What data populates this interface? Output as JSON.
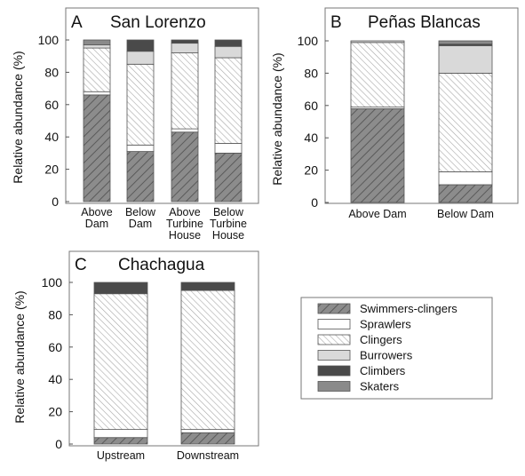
{
  "colors": {
    "swimmers_clingers": "#8c8c8c",
    "sprawlers": "#ffffff",
    "clingers": "#ffffff",
    "burrowers": "#d9d9d9",
    "climbers": "#4a4a4a",
    "skaters": "#8a8a8a",
    "stroke": "#555555"
  },
  "legend": {
    "items": [
      {
        "key": "swimmers_clingers",
        "label": "Swimmers-clingers"
      },
      {
        "key": "sprawlers",
        "label": "Sprawlers"
      },
      {
        "key": "clingers",
        "label": "Clingers"
      },
      {
        "key": "burrowers",
        "label": "Burrowers"
      },
      {
        "key": "climbers",
        "label": "Climbers"
      },
      {
        "key": "skaters",
        "label": "Skaters"
      }
    ]
  },
  "chart_data": [
    {
      "type": "bar",
      "stacked": true,
      "panel_letter": "A",
      "title": "San Lorenzo",
      "ylabel": "Relative abundance (%)",
      "ylim": [
        0,
        100
      ],
      "yticks": [
        0,
        20,
        40,
        60,
        80,
        100
      ],
      "categories": [
        "Above\nDam",
        "Below\nDam",
        "Above\nTurbine\nHouse",
        "Below\nTurbine\nHouse"
      ],
      "series": [
        {
          "name": "Swimmers-clingers",
          "key": "swimmers_clingers",
          "values": [
            66,
            31,
            43,
            30
          ]
        },
        {
          "name": "Sprawlers",
          "key": "sprawlers",
          "values": [
            2,
            4,
            2,
            6
          ]
        },
        {
          "name": "Clingers",
          "key": "clingers",
          "values": [
            27,
            50,
            47,
            53
          ]
        },
        {
          "name": "Burrowers",
          "key": "burrowers",
          "values": [
            2,
            8,
            6,
            7
          ]
        },
        {
          "name": "Climbers",
          "key": "climbers",
          "values": [
            0,
            7,
            2,
            4
          ]
        },
        {
          "name": "Skaters",
          "key": "skaters",
          "values": [
            3,
            0,
            0,
            0
          ]
        }
      ]
    },
    {
      "type": "bar",
      "stacked": true,
      "panel_letter": "B",
      "title": "Peñas Blancas",
      "ylabel": "Relative abundance (%)",
      "ylim": [
        0,
        100
      ],
      "yticks": [
        0,
        20,
        40,
        60,
        80,
        100
      ],
      "categories": [
        "Above Dam",
        "Below Dam"
      ],
      "series": [
        {
          "name": "Swimmers-clingers",
          "key": "swimmers_clingers",
          "values": [
            58,
            11
          ]
        },
        {
          "name": "Sprawlers",
          "key": "sprawlers",
          "values": [
            1,
            8
          ]
        },
        {
          "name": "Clingers",
          "key": "clingers",
          "values": [
            40,
            61
          ]
        },
        {
          "name": "Burrowers",
          "key": "burrowers",
          "values": [
            1,
            17
          ]
        },
        {
          "name": "Climbers",
          "key": "climbers",
          "values": [
            0,
            1
          ]
        },
        {
          "name": "Skaters",
          "key": "skaters",
          "values": [
            0,
            2
          ]
        }
      ]
    },
    {
      "type": "bar",
      "stacked": true,
      "panel_letter": "C",
      "title": "Chachagua",
      "ylabel": "Relative abundance (%)",
      "ylim": [
        0,
        100
      ],
      "yticks": [
        0,
        20,
        40,
        60,
        80,
        100
      ],
      "categories": [
        "Upstream",
        "Downstream"
      ],
      "series": [
        {
          "name": "Swimmers-clingers",
          "key": "swimmers_clingers",
          "values": [
            4,
            7
          ]
        },
        {
          "name": "Sprawlers",
          "key": "sprawlers",
          "values": [
            5,
            2
          ]
        },
        {
          "name": "Clingers",
          "key": "clingers",
          "values": [
            84,
            86
          ]
        },
        {
          "name": "Burrowers",
          "key": "burrowers",
          "values": [
            0,
            0
          ]
        },
        {
          "name": "Climbers",
          "key": "climbers",
          "values": [
            7,
            5
          ]
        },
        {
          "name": "Skaters",
          "key": "skaters",
          "values": [
            0,
            0
          ]
        }
      ]
    }
  ]
}
